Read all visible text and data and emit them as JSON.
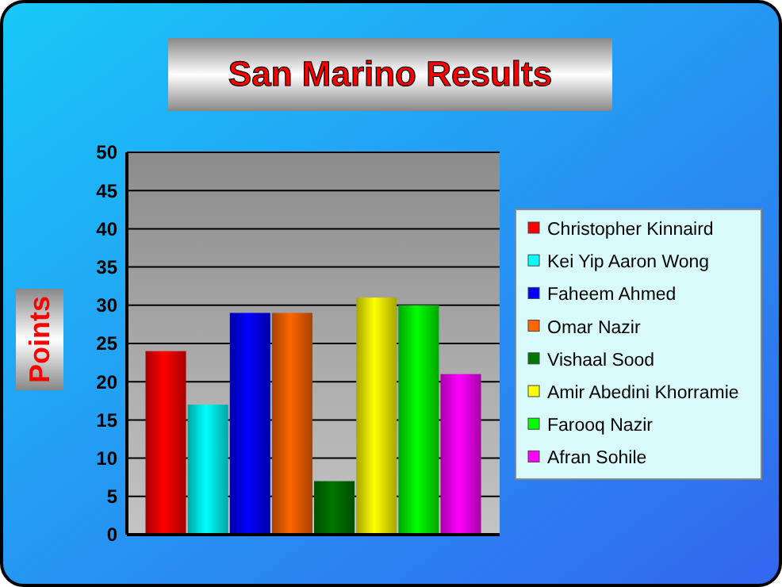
{
  "chart_data": {
    "type": "bar",
    "title": "San Marino Results",
    "ylabel": "Points",
    "categories": [
      null
    ],
    "series": [
      {
        "name": "Christopher Kinnaird",
        "color": "#ff0000",
        "values": [
          24
        ]
      },
      {
        "name": "Kei Yip Aaron Wong",
        "color": "#00ffff",
        "values": [
          17
        ]
      },
      {
        "name": "Faheem Ahmed",
        "color": "#0000ff",
        "values": [
          29
        ]
      },
      {
        "name": "Omar Nazir",
        "color": "#ff6600",
        "values": [
          29
        ]
      },
      {
        "name": "Vishaal Sood",
        "color": "#007700",
        "values": [
          7
        ]
      },
      {
        "name": "Amir Abedini Khorramie",
        "color": "#ffff00",
        "values": [
          31
        ]
      },
      {
        "name": "Farooq Nazir",
        "color": "#00ff00",
        "values": [
          30
        ]
      },
      {
        "name": "Afran Sohile",
        "color": "#ff00ff",
        "values": [
          21
        ]
      }
    ],
    "ylim": [
      0,
      50
    ],
    "yticks": [
      0,
      5,
      10,
      15,
      20,
      25,
      30,
      35,
      40,
      45,
      50
    ],
    "grid": "y",
    "legend": "right",
    "tick_labels": "y"
  }
}
